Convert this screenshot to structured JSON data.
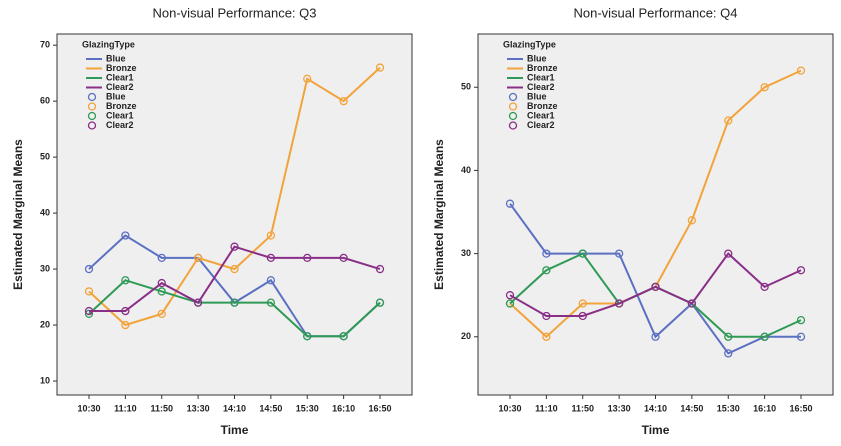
{
  "chart_data": [
    {
      "type": "line",
      "title": "Non-visual Performance: Q3",
      "x_label": "Time",
      "y_label": "Estimated Marginal Means",
      "legend_title": "GlazingType",
      "categories": [
        "10:30",
        "11:10",
        "11:50",
        "13:30",
        "14:10",
        "14:50",
        "15:30",
        "16:10",
        "16:50"
      ],
      "ylim": [
        7.5,
        72
      ],
      "yticks": [
        10,
        20,
        30,
        40,
        50,
        60,
        70
      ],
      "series": [
        {
          "name": "Blue",
          "color": "#5b70c2",
          "values": [
            30,
            36,
            32,
            32,
            24,
            28,
            18,
            18,
            24
          ]
        },
        {
          "name": "Bronze",
          "color": "#f2a33a",
          "values": [
            26,
            20,
            22,
            32,
            30,
            36,
            64,
            60,
            66
          ]
        },
        {
          "name": "Clear1",
          "color": "#2f9a56",
          "values": [
            22,
            28,
            26,
            24,
            24,
            24,
            18,
            18,
            24
          ]
        },
        {
          "name": "Clear2",
          "color": "#8a2f88",
          "values": [
            22.5,
            22.5,
            27.5,
            24,
            34,
            32,
            32,
            32,
            30
          ]
        }
      ]
    },
    {
      "type": "line",
      "title": "Non-visual Performance: Q4",
      "x_label": "Time",
      "y_label": "Estimated Marginal Means",
      "legend_title": "GlazingType",
      "categories": [
        "10:30",
        "11:10",
        "11:50",
        "13:30",
        "14:10",
        "14:50",
        "15:30",
        "16:10",
        "16:50"
      ],
      "ylim": [
        13,
        56.4
      ],
      "yticks": [
        20,
        30,
        40,
        50
      ],
      "series": [
        {
          "name": "Blue",
          "color": "#5b70c2",
          "values": [
            36,
            30,
            30,
            30,
            20,
            24,
            18,
            20,
            20
          ]
        },
        {
          "name": "Bronze",
          "color": "#f2a33a",
          "values": [
            24,
            20,
            24,
            24,
            26,
            34,
            46,
            50,
            52
          ]
        },
        {
          "name": "Clear1",
          "color": "#2f9a56",
          "values": [
            24,
            28,
            30,
            24,
            26,
            24,
            20,
            20,
            22
          ]
        },
        {
          "name": "Clear2",
          "color": "#8a2f88",
          "values": [
            25,
            22.5,
            22.5,
            24,
            26,
            24,
            30,
            26,
            28
          ]
        }
      ]
    }
  ]
}
